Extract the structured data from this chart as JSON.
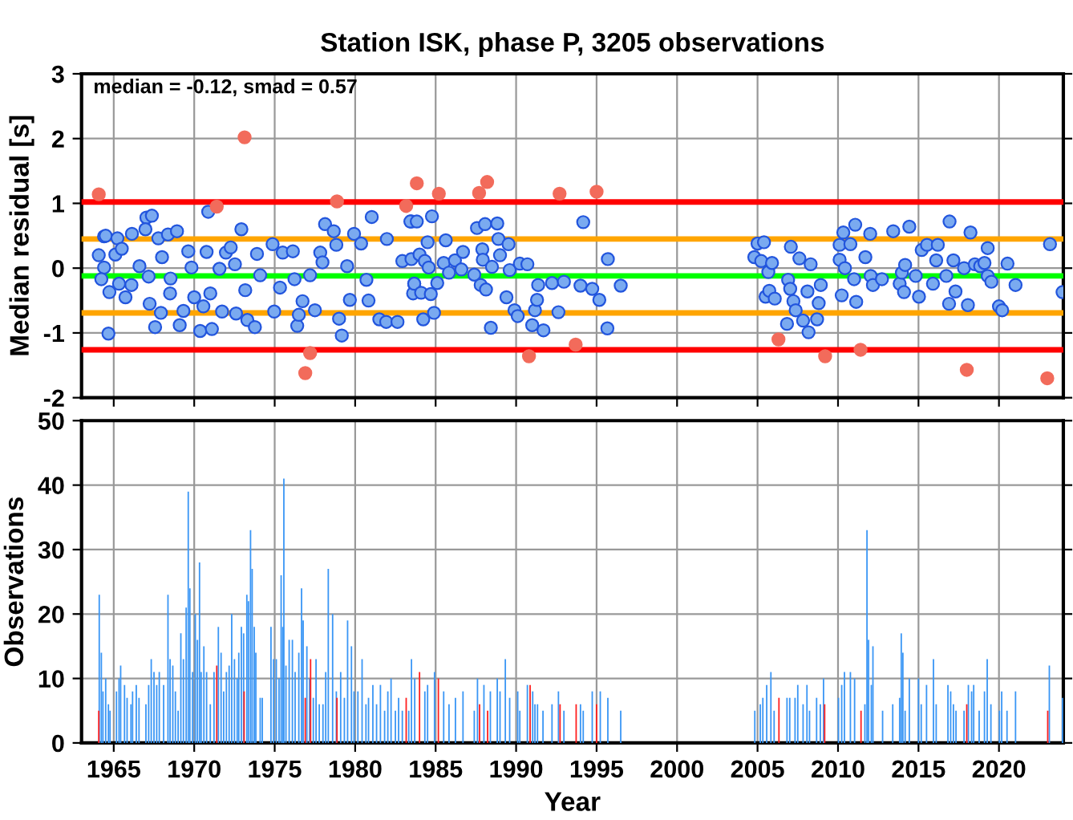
{
  "chart_data": [
    {
      "type": "scatter",
      "title": "Station ISK, phase P, 3205 observations",
      "ylabel": "Median residual [s]",
      "xlim": [
        1963,
        2024
      ],
      "xticks": [
        1965,
        1970,
        1975,
        1980,
        1985,
        1990,
        1995,
        2000,
        2005,
        2010,
        2015,
        2020
      ],
      "ylim": [
        -2,
        3
      ],
      "yticks": [
        -2,
        -1,
        0,
        1,
        2,
        3
      ],
      "tick_labels": "y",
      "grid": true,
      "marker": "circle",
      "annotations": [
        "median = -0.12, smad = 0.57"
      ],
      "ref_lines": [
        {
          "axis": "y",
          "value": 1.02,
          "color": "#ff0000"
        },
        {
          "axis": "y",
          "value": 0.45,
          "color": "#ffa500"
        },
        {
          "axis": "y",
          "value": -0.12,
          "color": "#00ff00"
        },
        {
          "axis": "y",
          "value": -0.69,
          "color": "#ffa500"
        },
        {
          "axis": "y",
          "value": -1.26,
          "color": "#ff0000"
        }
      ],
      "series": [
        {
          "color": "#7aaaf0",
          "x": [
            1964.07,
            1964.4,
            1964.5,
            1964.67,
            1964.4,
            1964.23,
            1964.73,
            1965.23,
            1965.1,
            1965.5,
            1965.33,
            1965.73,
            1966.13,
            1966.1,
            1966.6,
            1967.03,
            1967.37,
            1966.97,
            1967.17,
            1967.23,
            1967.57,
            1967.93,
            1967.77,
            1968.0,
            1968.37,
            1968.93,
            1968.53,
            1968.5,
            1969.1,
            1969.33,
            1969.63,
            1969.83,
            1970.0,
            1970.37,
            1970.57,
            1970.87,
            1970.77,
            1971.1,
            1971.0,
            1971.57,
            1971.73,
            1971.97,
            1972.27,
            1972.53,
            1972.93,
            1972.6,
            1973.17,
            1973.3,
            1973.77,
            1973.9,
            1974.1,
            1974.87,
            1974.97,
            1975.33,
            1975.5,
            1976.13,
            1976.23,
            1976.4,
            1976.5,
            1976.73,
            1977.2,
            1977.5,
            1977.83,
            1977.97,
            1978.13,
            1978.67,
            1979.0,
            1979.17,
            1978.83,
            1979.5,
            1979.67,
            1979.93,
            1980.37,
            1980.7,
            1981.03,
            1980.83,
            1981.5,
            1981.93,
            1982.63,
            1981.97,
            1982.93,
            1983.5,
            1983.67,
            1983.6,
            1983.43,
            1983.83,
            1984.77,
            1984.5,
            1983.5,
            1984.0,
            1984.33,
            1984.57,
            1983.67,
            1984.1,
            1984.7,
            1984.23,
            1984.9,
            1985.1,
            1985.63,
            1985.5,
            1985.83,
            1986.2,
            1986.7,
            1986.6,
            1987.4,
            1987.57,
            1988.07,
            1988.83,
            1987.9,
            1987.93,
            1987.8,
            1988.13,
            1988.43,
            1988.5,
            1988.9,
            1989.0,
            1989.53,
            1989.4,
            1989.6,
            1989.9,
            1990.1,
            1990.23,
            1990.7,
            1991.0,
            1991.17,
            1991.3,
            1991.37,
            1991.7,
            1992.23,
            1992.63,
            1992.97,
            1994.0,
            1994.17,
            1994.73,
            1995.17,
            1995.7,
            1995.67,
            1996.5,
            2004.8,
            2005.0,
            2005.4,
            2005.23,
            2005.67,
            2005.9,
            2005.5,
            2005.73,
            2006.07,
            2006.9,
            2007.07,
            2007.03,
            2007.23,
            2007.37,
            2006.83,
            2007.6,
            2008.3,
            2008.1,
            2007.83,
            2008.17,
            2008.7,
            2008.8,
            2008.93,
            2010.1,
            2010.33,
            2010.1,
            2010.43,
            2010.23,
            2010.77,
            2011.07,
            2011.0,
            2011.13,
            2011.7,
            2012.0,
            2012.03,
            2012.17,
            2012.73,
            2013.43,
            2013.83,
            2014.1,
            2013.97,
            2014.17,
            2014.43,
            2014.83,
            2015.03,
            2015.2,
            2015.53,
            2016.1,
            2016.2,
            2015.9,
            2016.73,
            2016.93,
            2017.17,
            2016.9,
            2017.3,
            2017.83,
            2018.07,
            2018.23,
            2018.5,
            2018.83,
            2019.1,
            2019.3,
            2019.3,
            2019.53,
            2020.0,
            2020.2,
            2020.53,
            2021.03,
            2023.17,
            2023.95
          ],
          "values": [
            0.2,
            0.49,
            0.5,
            -1.01,
            0.01,
            -0.17,
            -0.37,
            0.46,
            0.21,
            0.3,
            -0.24,
            -0.45,
            0.53,
            -0.26,
            0.03,
            0.78,
            0.81,
            0.6,
            -0.13,
            -0.55,
            -0.91,
            -0.69,
            0.46,
            0.17,
            0.52,
            0.57,
            -0.16,
            -0.39,
            -0.88,
            -0.66,
            0.26,
            0.01,
            -0.45,
            -0.97,
            -0.59,
            0.87,
            0.25,
            -0.94,
            -0.39,
            -0.01,
            -0.67,
            0.24,
            0.32,
            0.06,
            0.6,
            -0.7,
            -0.34,
            -0.8,
            -0.91,
            0.22,
            -0.11,
            0.37,
            -0.67,
            -0.3,
            0.24,
            0.26,
            -0.17,
            -0.89,
            -0.72,
            -0.51,
            -0.11,
            -0.65,
            0.24,
            0.09,
            0.68,
            0.57,
            -0.78,
            -1.04,
            0.36,
            0.03,
            -0.49,
            0.53,
            0.38,
            -0.18,
            0.79,
            -0.5,
            -0.79,
            -0.83,
            -0.83,
            0.45,
            0.11,
            0.72,
            -0.24,
            -0.39,
            0.72,
            0.72,
            0.8,
            0.4,
            0.14,
            0.21,
            0.11,
            0.01,
            -0.24,
            -0.38,
            -0.4,
            -0.79,
            -0.69,
            -0.23,
            0.43,
            0.08,
            -0.07,
            0.12,
            0.25,
            -0.02,
            -0.1,
            0.62,
            0.68,
            0.69,
            0.29,
            0.13,
            -0.26,
            -0.33,
            -0.92,
            0.02,
            0.45,
            0.2,
            0.37,
            -0.45,
            -0.03,
            -0.65,
            -0.74,
            0.07,
            0.06,
            -0.88,
            -0.65,
            -0.49,
            -0.26,
            -0.96,
            -0.23,
            -0.68,
            -0.21,
            -0.27,
            0.71,
            -0.32,
            -0.49,
            0.14,
            -0.93,
            -0.27,
            0.17,
            0.38,
            0.4,
            0.11,
            -0.06,
            0.08,
            -0.44,
            -0.35,
            -0.47,
            -0.18,
            0.33,
            -0.32,
            -0.51,
            -0.65,
            -0.86,
            0.15,
            0.06,
            -0.36,
            -0.81,
            -0.99,
            -0.79,
            -0.54,
            -0.26,
            0.36,
            0.55,
            0.13,
            0.0,
            -0.42,
            0.37,
            0.67,
            -0.17,
            -0.52,
            0.17,
            0.53,
            -0.12,
            -0.26,
            -0.17,
            0.57,
            -0.24,
            -0.37,
            -0.07,
            0.05,
            0.64,
            -0.12,
            -0.44,
            0.28,
            0.36,
            0.12,
            0.36,
            -0.24,
            -0.12,
            0.72,
            0.12,
            -0.55,
            -0.36,
            0.0,
            -0.57,
            0.55,
            0.06,
            0.03,
            0.08,
            0.31,
            -0.12,
            -0.21,
            -0.59,
            -0.65,
            0.07,
            -0.26,
            0.37,
            -0.37
          ]
        },
        {
          "color": "#f26b5b",
          "x": [
            1964.07,
            1973.13,
            1971.4,
            1977.2,
            1976.9,
            1978.87,
            1983.17,
            1983.83,
            1985.2,
            1987.7,
            1988.2,
            1992.7,
            1995.0,
            1990.8,
            1993.7,
            2006.3,
            2009.2,
            2011.4,
            2018.0,
            2023.0
          ],
          "values": [
            1.14,
            2.02,
            0.95,
            -1.31,
            -1.62,
            1.03,
            0.96,
            1.31,
            1.15,
            1.16,
            1.33,
            1.15,
            1.18,
            -1.36,
            -1.18,
            -1.1,
            -1.36,
            -1.26,
            -1.57,
            -1.7
          ]
        }
      ]
    },
    {
      "type": "bar",
      "xlabel": "Year",
      "ylabel": "Observations",
      "xlim": [
        1963,
        2024
      ],
      "xticks": [
        1965,
        1970,
        1975,
        1980,
        1985,
        1990,
        1995,
        2000,
        2005,
        2010,
        2015,
        2020
      ],
      "ylim": [
        0,
        50
      ],
      "yticks": [
        0,
        10,
        20,
        30,
        40,
        50
      ],
      "grid": true,
      "series": [
        {
          "color": "#3a96f5",
          "x": [
            1964.1,
            1964.23,
            1964.33,
            1964.5,
            1964.67,
            1964.77,
            1965.17,
            1965.33,
            1965.43,
            1965.67,
            1965.83,
            1966.07,
            1966.17,
            1966.4,
            1966.57,
            1967.0,
            1967.17,
            1967.33,
            1967.5,
            1967.67,
            1967.83,
            1968.1,
            1968.37,
            1968.5,
            1968.67,
            1968.83,
            1969.0,
            1969.17,
            1969.33,
            1969.5,
            1969.63,
            1969.73,
            1969.9,
            1970.07,
            1970.2,
            1970.33,
            1970.43,
            1970.6,
            1970.77,
            1971.0,
            1971.23,
            1971.5,
            1971.67,
            1971.83,
            1972.0,
            1972.17,
            1972.33,
            1972.5,
            1972.67,
            1972.77,
            1972.93,
            1973.07,
            1973.27,
            1973.37,
            1973.5,
            1973.6,
            1973.73,
            1973.83,
            1974.1,
            1974.23,
            1974.77,
            1974.93,
            1975.1,
            1975.27,
            1975.4,
            1975.5,
            1975.57,
            1975.7,
            1975.9,
            1976.1,
            1976.27,
            1976.5,
            1976.67,
            1976.77,
            1977.0,
            1977.17,
            1977.4,
            1977.57,
            1977.77,
            1978.0,
            1978.17,
            1978.33,
            1978.6,
            1978.83,
            1979.1,
            1979.33,
            1979.53,
            1979.77,
            1979.93,
            1980.17,
            1980.43,
            1980.67,
            1980.83,
            1981.1,
            1981.33,
            1981.57,
            1981.83,
            1982.03,
            1982.23,
            1982.5,
            1982.7,
            1982.93,
            1983.33,
            1983.5,
            1983.7,
            1984.33,
            1984.5,
            1984.93,
            1985.5,
            1985.83,
            1986.23,
            1986.7,
            1987.4,
            1987.6,
            1988.0,
            1988.4,
            1988.83,
            1989.0,
            1989.33,
            1989.6,
            1990.1,
            1990.23,
            1990.7,
            1991.03,
            1991.17,
            1991.33,
            1991.67,
            1992.23,
            1992.63,
            1992.97,
            1994.0,
            1994.17,
            1994.73,
            1995.23,
            1995.7,
            1996.5,
            2004.83,
            2005.17,
            2005.33,
            2005.57,
            2005.83,
            2006.03,
            2006.83,
            2007.0,
            2007.33,
            2007.5,
            2007.83,
            2008.07,
            2008.23,
            2008.67,
            2008.9,
            2009.1,
            2010.03,
            2010.23,
            2010.4,
            2010.77,
            2011.03,
            2011.67,
            2011.8,
            2011.9,
            2012.07,
            2012.17,
            2012.77,
            2013.4,
            2013.83,
            2013.93,
            2014.03,
            2014.17,
            2014.43,
            2015.0,
            2015.17,
            2015.5,
            2015.93,
            2016.1,
            2016.83,
            2017.0,
            2017.17,
            2017.33,
            2017.83,
            2018.1,
            2018.3,
            2018.43,
            2018.77,
            2019.1,
            2019.27,
            2019.5,
            2020.03,
            2020.17,
            2020.5,
            2021.03,
            2023.13,
            2023.95
          ],
          "values": [
            23,
            14,
            8,
            10,
            6,
            5,
            8,
            10,
            12,
            9,
            7,
            6,
            8,
            9,
            7,
            6,
            9,
            13,
            11,
            9,
            11,
            9,
            23,
            13,
            12,
            8,
            5,
            17,
            13,
            21,
            39,
            24,
            11,
            20,
            16,
            28,
            11,
            15,
            11,
            6,
            11,
            18,
            14,
            8,
            11,
            12,
            20,
            13,
            10,
            14,
            18,
            17,
            23,
            22,
            33,
            27,
            18,
            14,
            7,
            7,
            18,
            13,
            13,
            10,
            26,
            18,
            41,
            12,
            16,
            16,
            11,
            14,
            24,
            19,
            15,
            10,
            7,
            13,
            6,
            6,
            11,
            27,
            20,
            8,
            11,
            7,
            19,
            15,
            8,
            8,
            13,
            6,
            7,
            9,
            6,
            9,
            5,
            8,
            10,
            5,
            7,
            5,
            5,
            13,
            10,
            8,
            9,
            11,
            8,
            6,
            7,
            8,
            5,
            10,
            9,
            8,
            10,
            8,
            13,
            7,
            8,
            5,
            9,
            8,
            6,
            6,
            5,
            6,
            8,
            5,
            6,
            5,
            8,
            8,
            7,
            5,
            5,
            6,
            7,
            9,
            11,
            5,
            7,
            7,
            7,
            9,
            6,
            9,
            5,
            7,
            6,
            10,
            7,
            9,
            11,
            11,
            10,
            6,
            33,
            16,
            9,
            15,
            5,
            6,
            7,
            17,
            14,
            5,
            10,
            10,
            6,
            9,
            13,
            6,
            9,
            8,
            6,
            5,
            5,
            9,
            8,
            9,
            5,
            8,
            13,
            6,
            5,
            8,
            5,
            8,
            12,
            7
          ]
        },
        {
          "color": "#ff2020",
          "x": [
            1964.07,
            1971.4,
            1973.1,
            1976.9,
            1977.23,
            1978.87,
            1983.17,
            1984.0,
            1985.17,
            1987.73,
            1988.23,
            1990.87,
            1992.73,
            1993.73,
            1995.0,
            2006.33,
            2009.17,
            2011.43,
            2018.0,
            2023.03
          ],
          "values": [
            5,
            12,
            8,
            7,
            13,
            7,
            7,
            11,
            10,
            6,
            5,
            9,
            6,
            6,
            6,
            7,
            6,
            5,
            6,
            5
          ]
        }
      ]
    }
  ]
}
